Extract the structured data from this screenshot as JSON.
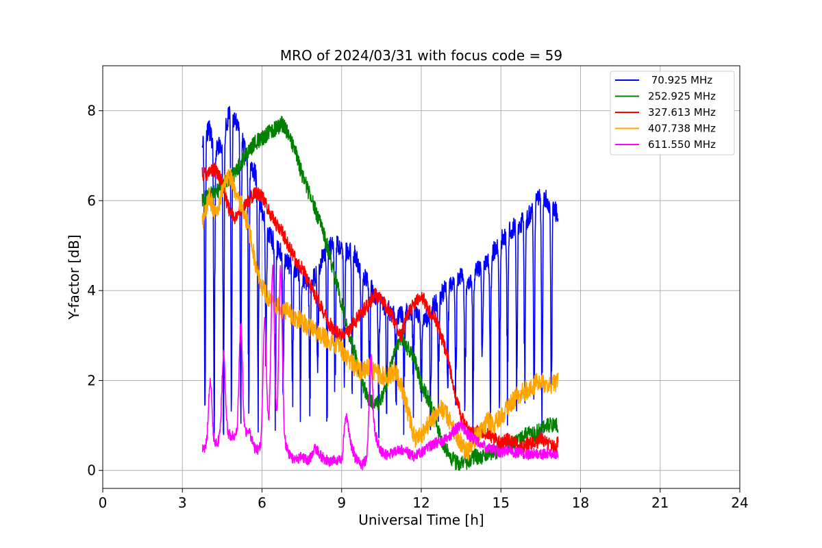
{
  "chart_data": {
    "type": "line",
    "title": "MRO of 2024/03/31 with focus code = 59",
    "xlabel": "Universal Time [h]",
    "ylabel": "Y-factor [dB]",
    "xlim": [
      0,
      24
    ],
    "ylim": [
      -0.4,
      9.0
    ],
    "xticks": [
      0,
      3,
      6,
      9,
      12,
      15,
      18,
      21,
      24
    ],
    "xtick_labels": [
      "0",
      "3",
      "6",
      "9",
      "12",
      "15",
      "18",
      "21",
      "24"
    ],
    "yticks": [
      0,
      2,
      4,
      6,
      8
    ],
    "ytick_labels": [
      "0",
      "2",
      "4",
      "6",
      "8"
    ],
    "grid": true,
    "legend_position": "top-right",
    "series": [
      {
        "name": " 70.925 MHz",
        "color": "#0000ff",
        "x": [
          3.75,
          4.0,
          4.25,
          4.5,
          4.75,
          5.0,
          5.25,
          5.5,
          5.75,
          6.0,
          6.25,
          6.5,
          6.75,
          7.0,
          7.25,
          7.5,
          7.75,
          8.0,
          8.25,
          8.5,
          8.75,
          9.0,
          9.25,
          9.5,
          9.75,
          10.0,
          10.25,
          10.5,
          10.75,
          11.0,
          11.25,
          11.5,
          11.75,
          12.0,
          12.25,
          12.5,
          12.75,
          13.0,
          13.25,
          13.5,
          13.75,
          14.0,
          14.25,
          14.5,
          14.75,
          15.0,
          15.25,
          15.5,
          15.75,
          16.0,
          16.25,
          16.5,
          16.75,
          17.0,
          17.15
        ],
        "y": [
          7.4,
          7.6,
          7.1,
          7.3,
          7.9,
          7.8,
          7.4,
          6.8,
          6.6,
          5.8,
          5.3,
          5.0,
          4.8,
          4.6,
          4.5,
          4.3,
          4.2,
          4.3,
          4.7,
          4.9,
          5.1,
          4.9,
          4.9,
          4.8,
          4.4,
          4.2,
          3.9,
          3.7,
          3.6,
          3.4,
          3.5,
          3.5,
          3.6,
          3.3,
          3.4,
          3.7,
          3.9,
          4.1,
          4.2,
          4.3,
          4.2,
          4.4,
          4.5,
          4.6,
          4.9,
          5.1,
          5.3,
          5.4,
          5.5,
          5.6,
          5.9,
          6.1,
          6.0,
          5.8,
          5.7
        ],
        "dips": [
          3.85,
          4.2,
          4.55,
          4.85,
          5.2,
          5.5,
          5.85,
          6.15,
          6.5,
          6.8,
          7.15,
          7.45,
          7.8,
          8.1,
          8.45,
          8.75,
          9.1,
          9.4,
          9.75,
          10.05,
          10.4,
          10.7,
          11.05,
          11.35,
          11.7,
          12.0,
          12.35,
          12.65,
          13.0,
          13.3,
          13.65,
          13.95,
          14.3,
          14.6,
          14.95,
          15.25,
          15.6,
          15.9,
          16.25,
          16.55,
          16.9
        ],
        "dip_min": 0.0
      },
      {
        "name": "252.925 MHz",
        "color": "#008000",
        "x": [
          3.75,
          4.0,
          4.25,
          4.5,
          4.75,
          5.0,
          5.25,
          5.5,
          5.75,
          6.0,
          6.25,
          6.5,
          6.75,
          7.0,
          7.25,
          7.5,
          7.75,
          8.0,
          8.25,
          8.5,
          8.75,
          9.0,
          9.25,
          9.5,
          9.75,
          10.0,
          10.25,
          10.5,
          10.75,
          11.0,
          11.25,
          11.5,
          11.75,
          12.0,
          12.25,
          12.5,
          12.75,
          13.0,
          13.25,
          13.5,
          13.75,
          14.0,
          14.25,
          14.5,
          14.75,
          15.0,
          15.25,
          15.5,
          15.75,
          16.0,
          16.25,
          16.5,
          16.75,
          17.0,
          17.15
        ],
        "y": [
          6.0,
          6.1,
          6.2,
          6.3,
          6.5,
          6.6,
          6.9,
          7.1,
          7.3,
          7.4,
          7.5,
          7.6,
          7.7,
          7.5,
          7.1,
          6.6,
          6.2,
          5.8,
          5.4,
          4.9,
          4.3,
          3.7,
          3.1,
          2.6,
          2.0,
          1.6,
          1.4,
          1.6,
          2.1,
          2.6,
          3.0,
          2.7,
          2.5,
          1.9,
          1.6,
          1.2,
          0.7,
          0.4,
          0.2,
          0.15,
          0.2,
          0.3,
          0.3,
          0.4,
          0.4,
          0.5,
          0.6,
          0.6,
          0.7,
          0.8,
          0.8,
          0.9,
          1.0,
          1.0,
          1.0
        ],
        "dips": [],
        "dip_min": 0.0
      },
      {
        "name": "327.613 MHz",
        "color": "#ff0000",
        "x": [
          3.75,
          4.0,
          4.25,
          4.5,
          4.75,
          5.0,
          5.25,
          5.5,
          5.75,
          6.0,
          6.25,
          6.5,
          6.75,
          7.0,
          7.25,
          7.5,
          7.75,
          8.0,
          8.25,
          8.5,
          8.75,
          9.0,
          9.25,
          9.5,
          9.75,
          10.0,
          10.25,
          10.5,
          10.75,
          11.0,
          11.25,
          11.5,
          11.75,
          12.0,
          12.25,
          12.5,
          12.75,
          13.0,
          13.25,
          13.5,
          13.75,
          14.0,
          14.25,
          14.5,
          14.75,
          15.0,
          15.25,
          15.5,
          15.75,
          16.0,
          16.25,
          16.5,
          16.75,
          17.0,
          17.15
        ],
        "y": [
          6.6,
          6.6,
          6.7,
          6.4,
          5.8,
          5.6,
          5.8,
          6.0,
          6.2,
          6.1,
          5.8,
          5.5,
          5.3,
          5.0,
          4.7,
          4.5,
          4.2,
          3.9,
          3.6,
          3.3,
          3.1,
          3.0,
          3.1,
          3.3,
          3.5,
          3.7,
          3.9,
          3.8,
          3.6,
          3.3,
          3.0,
          3.5,
          3.7,
          3.9,
          3.6,
          3.4,
          3.0,
          2.5,
          1.8,
          1.2,
          0.9,
          0.8,
          0.9,
          0.8,
          0.7,
          0.6,
          0.7,
          0.6,
          0.5,
          0.6,
          0.6,
          0.7,
          0.6,
          0.5,
          0.6
        ],
        "dips": [],
        "dip_min": 0.0
      },
      {
        "name": "407.738 MHz",
        "color": "#ffa500",
        "x": [
          3.75,
          4.0,
          4.25,
          4.5,
          4.75,
          5.0,
          5.25,
          5.5,
          5.75,
          6.0,
          6.25,
          6.5,
          6.75,
          7.0,
          7.25,
          7.5,
          7.75,
          8.0,
          8.25,
          8.5,
          8.75,
          9.0,
          9.25,
          9.5,
          9.75,
          10.0,
          10.25,
          10.5,
          10.75,
          11.0,
          11.25,
          11.5,
          11.75,
          12.0,
          12.25,
          12.5,
          12.75,
          13.0,
          13.25,
          13.5,
          13.75,
          14.0,
          14.25,
          14.5,
          14.75,
          15.0,
          15.25,
          15.5,
          15.75,
          16.0,
          16.25,
          16.5,
          16.75,
          17.0,
          17.15
        ],
        "y": [
          5.5,
          6.1,
          5.7,
          6.2,
          6.6,
          6.2,
          5.9,
          5.4,
          4.6,
          4.1,
          3.8,
          3.7,
          3.6,
          3.5,
          3.4,
          3.3,
          3.2,
          3.1,
          3.0,
          2.9,
          2.8,
          2.7,
          2.5,
          2.3,
          2.2,
          2.3,
          2.2,
          2.1,
          2.1,
          2.2,
          1.9,
          1.3,
          0.7,
          0.8,
          1.0,
          1.2,
          1.4,
          1.2,
          0.9,
          0.6,
          0.4,
          0.7,
          0.9,
          1.1,
          1.0,
          1.2,
          1.4,
          1.6,
          1.7,
          1.8,
          1.9,
          2.0,
          1.9,
          1.9,
          2.0
        ],
        "dips": [],
        "dip_min": 0.0
      },
      {
        "name": "611.550 MHz",
        "color": "#ff00ff",
        "x": [
          3.75,
          4.0,
          4.25,
          4.5,
          4.75,
          5.0,
          5.25,
          5.5,
          5.75,
          6.0,
          6.25,
          6.5,
          6.75,
          7.0,
          7.25,
          7.5,
          7.75,
          8.0,
          8.25,
          8.5,
          8.75,
          9.0,
          9.25,
          9.5,
          9.75,
          10.0,
          10.25,
          10.5,
          10.75,
          11.0,
          11.25,
          11.5,
          11.75,
          12.0,
          12.25,
          12.5,
          12.75,
          13.0,
          13.25,
          13.5,
          13.75,
          14.0,
          14.25,
          14.5,
          14.75,
          15.0,
          15.25,
          15.5,
          15.75,
          16.0,
          16.25,
          16.5,
          16.75,
          17.0,
          17.15
        ],
        "y": [
          0.5,
          0.55,
          0.6,
          0.7,
          0.8,
          0.75,
          0.7,
          0.9,
          0.45,
          0.5,
          0.8,
          0.9,
          0.7,
          0.4,
          0.2,
          0.3,
          0.2,
          0.5,
          0.3,
          0.2,
          0.25,
          0.2,
          0.8,
          0.3,
          0.1,
          0.3,
          0.8,
          0.4,
          0.35,
          0.4,
          0.45,
          0.4,
          0.3,
          0.4,
          0.5,
          0.6,
          0.65,
          0.7,
          0.9,
          1.0,
          0.8,
          0.7,
          0.6,
          0.5,
          0.45,
          0.4,
          0.45,
          0.4,
          0.4,
          0.35,
          0.4,
          0.35,
          0.4,
          0.35,
          0.35
        ],
        "dips": [],
        "dip_min": 0.0
      }
    ],
    "peaks": [
      {
        "series": 4,
        "x": 4.05,
        "y": 2.0
      },
      {
        "series": 4,
        "x": 4.55,
        "y": 2.6
      },
      {
        "series": 4,
        "x": 5.2,
        "y": 3.3
      },
      {
        "series": 4,
        "x": 6.1,
        "y": 3.3
      },
      {
        "series": 4,
        "x": 6.4,
        "y": 4.5
      },
      {
        "series": 4,
        "x": 6.7,
        "y": 4.5
      },
      {
        "series": 4,
        "x": 9.15,
        "y": 1.2
      },
      {
        "series": 4,
        "x": 10.1,
        "y": 2.5
      }
    ]
  }
}
